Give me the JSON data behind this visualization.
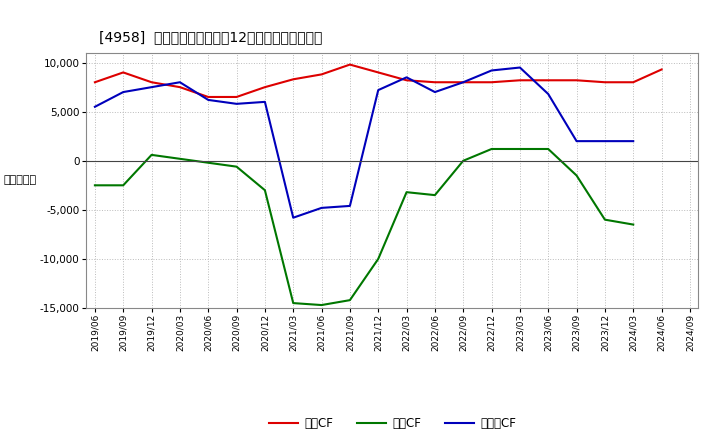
{
  "title": "[4958]  キャッシュフローの12か月移動合計の推移",
  "ylabel": "（百万円）",
  "ylim": [
    -15000,
    11000
  ],
  "yticks": [
    -15000,
    -10000,
    -5000,
    0,
    5000,
    10000
  ],
  "background_color": "#ffffff",
  "plot_bg_color": "#ffffff",
  "grid_color": "#bbbbbb",
  "x_labels": [
    "2019/06",
    "2019/09",
    "2019/12",
    "2020/03",
    "2020/06",
    "2020/09",
    "2020/12",
    "2021/03",
    "2021/06",
    "2021/09",
    "2021/12",
    "2022/03",
    "2022/06",
    "2022/09",
    "2022/12",
    "2023/03",
    "2023/06",
    "2023/09",
    "2023/12",
    "2024/03",
    "2024/06",
    "2024/09"
  ],
  "operating_cf": [
    8000,
    9000,
    8000,
    7500,
    6500,
    6500,
    7500,
    8300,
    8800,
    9800,
    9000,
    8200,
    8000,
    8000,
    8000,
    8200,
    8200,
    8200,
    8000,
    8000,
    9300,
    null
  ],
  "investing_cf": [
    -2500,
    -2500,
    600,
    200,
    -200,
    -600,
    -3000,
    -14500,
    -14700,
    -14200,
    -10000,
    -3200,
    -3500,
    0,
    1200,
    1200,
    1200,
    -1500,
    -6000,
    -6500,
    null,
    null
  ],
  "free_cf": [
    5500,
    7000,
    7500,
    8000,
    6200,
    5800,
    6000,
    -5800,
    -4800,
    -4600,
    7200,
    8500,
    7000,
    8000,
    9200,
    9500,
    6800,
    2000,
    2000,
    2000,
    null,
    null
  ],
  "line_colors": {
    "operating": "#dd0000",
    "investing": "#007700",
    "free": "#0000bb"
  },
  "legend_labels": {
    "operating": "営業CF",
    "investing": "投資CF",
    "free": "フリーCF"
  },
  "line_width": 1.5
}
